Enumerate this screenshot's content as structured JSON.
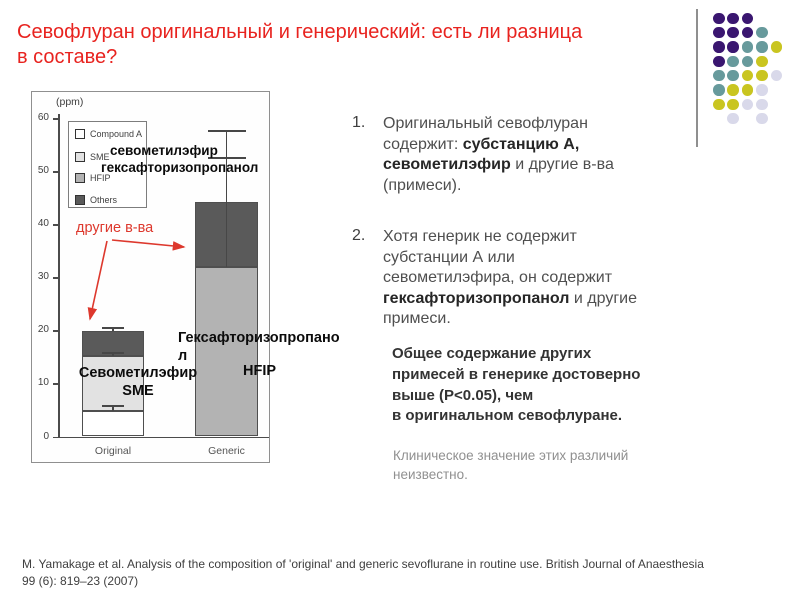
{
  "slide": {
    "title": "Севофлуран оригинальный и генерический: есть ли разница\nв составе?",
    "title_color": "#e8231f",
    "citation": "M. Yamakage et al. Analysis of the composition of 'original' and generic sevoflurane in routine use. British Journal of Anaesthesia\n99 (6): 819–23 (2007)"
  },
  "decor": {
    "line_color": "#8f8f8f",
    "dot_colors": {
      "P": "#3a1670",
      "T": "#679a9c",
      "Y": "#c9c520",
      "L": "#d9d9ea"
    },
    "dots_grid": [
      "PPP",
      "PPPT",
      "PPTTY",
      "PTTY",
      "TTYYL",
      "TYYL",
      "YYLL",
      ".L.L"
    ]
  },
  "chart_data": {
    "type": "stacked-bar",
    "title": "",
    "ylabel": "(ppm)",
    "unit": "ppm",
    "ylim": [
      0,
      60
    ],
    "yticks": [
      0,
      10,
      20,
      30,
      40,
      50,
      60
    ],
    "categories": [
      "Original",
      "Generic"
    ],
    "series": [
      {
        "name": "Compound A",
        "values": [
          4.8,
          0
        ],
        "color": "#ffffff"
      },
      {
        "name": "SME",
        "values": [
          10.3,
          0
        ],
        "color": "#e2e2e2"
      },
      {
        "name": "HFIP",
        "values": [
          0,
          32
        ],
        "color": "#b3b3b3"
      },
      {
        "name": "Others",
        "values": [
          4.7,
          12.3
        ],
        "color": "#5a5a5a"
      }
    ],
    "error_caps": [
      [
        6.0,
        16.0,
        20.7
      ],
      [
        52.7,
        57.8
      ]
    ],
    "legend": [
      "Compound A",
      "SME",
      "HFIP",
      "Others"
    ],
    "legend_position": "upper-left",
    "grid": false
  },
  "chart_overlays": {
    "accent_red": "#dd382d",
    "sme_ru": "севометилэфир",
    "hfip_ru": "гексафторизопропанол",
    "others_ru": "другие в-ва",
    "sevomethyl_label": "Севометилэфир\nSME",
    "hexafluoro_label": "Гексафторизопропано\nл",
    "hfip_abbr": "HFIP"
  },
  "content": {
    "item1_num": "1.",
    "item1_runs": [
      {
        "t": "Оригинальный севофлуран\nсодержит: "
      },
      {
        "t": "субстанцию А,\nсевометилэфир",
        "b": true
      },
      {
        "t": " и другие в-ва\n(примеси)."
      }
    ],
    "item2_num": "2.",
    "item2_runs": [
      {
        "t": "Хотя генерик не содержит\nсубстанции А или\nсевометилэфира, он содержит\n"
      },
      {
        "t": "гексафторизопропанол",
        "b": true
      },
      {
        "t": " и другие\nпримеси."
      }
    ],
    "emphasis_para": "Общее содержание других\nпримесей в генерике достоверно\nвыше (P<0.05), чем\nв оригинальном севофлуране.",
    "note_para": "Клиническое значение этих различий\nнеизвестно."
  }
}
